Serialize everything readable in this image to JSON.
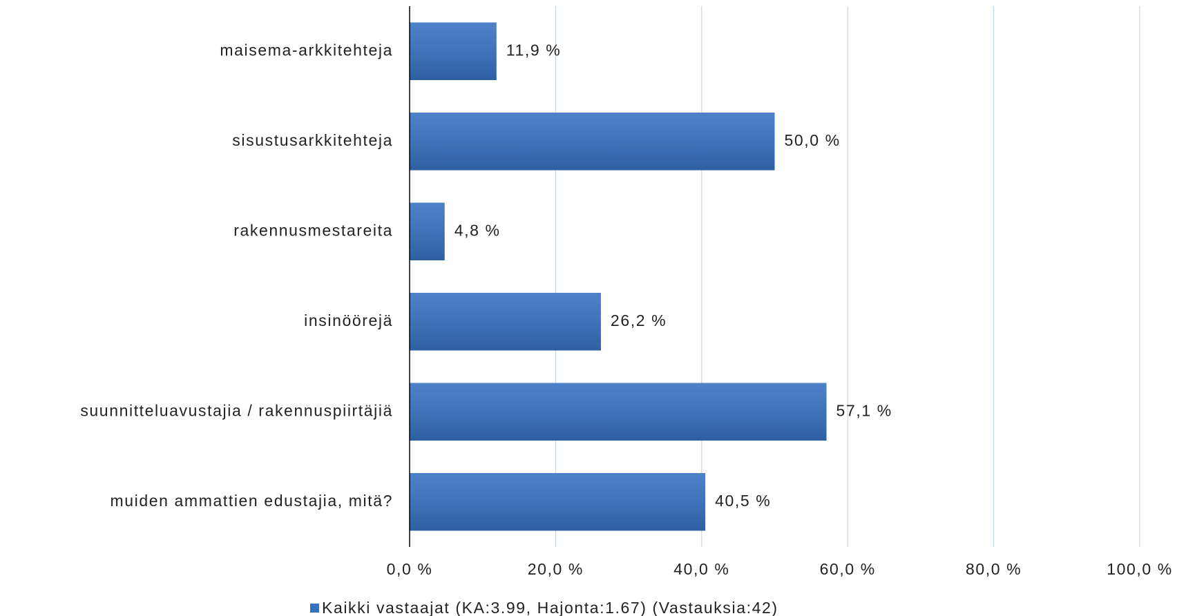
{
  "chart_data": {
    "type": "hbar",
    "categories": [
      "maisema-arkkitehteja",
      "sisustusarkkitehteja",
      "rakennusmestareita",
      "insinöörejä",
      "suunnitteluavustajia / rakennuspiirtäjiä",
      "muiden ammattien edustajia, mitä?"
    ],
    "series": [
      {
        "name": "Kaikki vastaajat (KA:3.99, Hajonta:1.67) (Vastauksia:42)",
        "color": "#3670c0",
        "values": [
          11.9,
          50.0,
          4.8,
          26.2,
          57.1,
          40.5
        ],
        "value_labels": [
          "11,9 %",
          "50,0 %",
          "4,8 %",
          "26,2 %",
          "57,1 %",
          "40,5 %"
        ]
      }
    ],
    "xlim": [
      0,
      100
    ],
    "xticks": [
      {
        "value": 0,
        "label": "0,0 %"
      },
      {
        "value": 20,
        "label": "20,0 %"
      },
      {
        "value": 40,
        "label": "40,0 %"
      },
      {
        "value": 60,
        "label": "60,0 %"
      },
      {
        "value": 80,
        "label": "80,0 %"
      },
      {
        "value": 100,
        "label": "100,0 %"
      }
    ],
    "grid": true,
    "legend": "bottom"
  }
}
